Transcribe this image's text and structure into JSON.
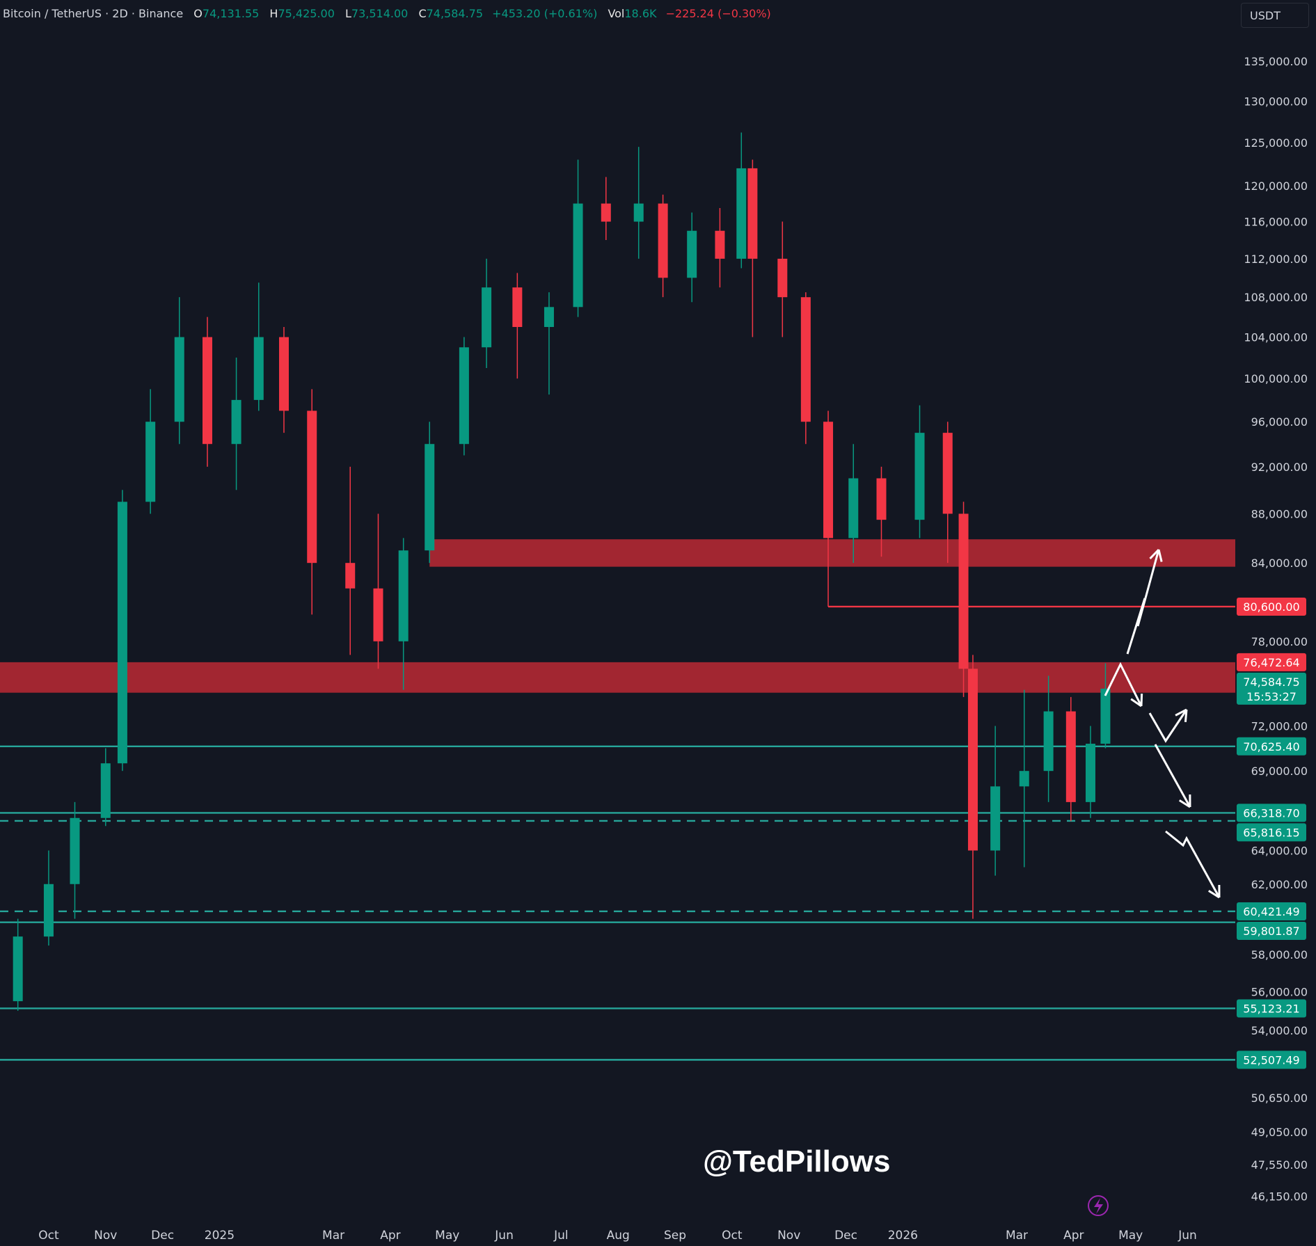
{
  "header": {
    "symbol": "Bitcoin / TetherUS · 2D · Binance",
    "o_label": "O",
    "open": "74,131.55",
    "h_label": "H",
    "high": "75,425.00",
    "l_label": "L",
    "low": "73,514.00",
    "c_label": "C",
    "close": "74,584.75",
    "change": "+453.20 (+0.61%)",
    "vol_label": "Vol",
    "volume": "18.6K",
    "vol_change": "−225.24 (−0.30%)"
  },
  "currency_button": "USDT",
  "watermark": "@TedPillows",
  "countdown": "15:53:27",
  "colors": {
    "bg": "#131722",
    "up": "#089981",
    "down": "#f23645",
    "zone": "#b22833",
    "level": "#26a69a"
  },
  "chart_data": {
    "type": "candlestick",
    "scale": "log",
    "ylim": [
      46150,
      135000
    ],
    "grid": false,
    "x_ticks": [
      "Oct",
      "Nov",
      "Dec",
      "2025",
      "Mar",
      "Apr",
      "May",
      "Jun",
      "Jul",
      "Aug",
      "Sep",
      "Oct",
      "Nov",
      "Dec",
      "2026",
      "Mar",
      "Apr",
      "May",
      "Jun"
    ],
    "y_ticks": [
      "135,000.00",
      "130,000.00",
      "125,000.00",
      "120,000.00",
      "116,000.00",
      "112,000.00",
      "108,000.00",
      "104,000.00",
      "100,000.00",
      "96,000.00",
      "92,000.00",
      "88,000.00",
      "84,000.00",
      "78,000.00",
      "72,000.00",
      "69,000.00",
      "64,000.00",
      "62,000.00",
      "58,000.00",
      "56,000.00",
      "54,000.00",
      "50,650.00",
      "49,050.00",
      "47,550.00",
      "46,150.00"
    ],
    "candles": [
      [
        "2024-09-01",
        52500,
        56000,
        52000,
        55500
      ],
      [
        "2024-09-15",
        55500,
        60000,
        55000,
        59000
      ],
      [
        "2024-10-01",
        59000,
        64000,
        58500,
        62000
      ],
      [
        "2024-10-15",
        62000,
        67000,
        60000,
        66000
      ],
      [
        "2024-11-01",
        66000,
        70500,
        65500,
        69500
      ],
      [
        "2024-11-10",
        69500,
        90000,
        69000,
        89000
      ],
      [
        "2024-11-25",
        89000,
        99000,
        88000,
        96000
      ],
      [
        "2024-12-10",
        96000,
        108000,
        94000,
        104000
      ],
      [
        "2024-12-25",
        104000,
        106000,
        92000,
        94000
      ],
      [
        "2025-01-10",
        94000,
        102000,
        90000,
        98000
      ],
      [
        "2025-01-22",
        98000,
        109500,
        97000,
        104000
      ],
      [
        "2025-02-05",
        104000,
        105000,
        95000,
        97000
      ],
      [
        "2025-02-20",
        97000,
        99000,
        80000,
        84000
      ],
      [
        "2025-03-10",
        84000,
        92000,
        77000,
        82000
      ],
      [
        "2025-03-25",
        82000,
        88000,
        76000,
        78000
      ],
      [
        "2025-04-08",
        78000,
        86000,
        74500,
        85000
      ],
      [
        "2025-04-22",
        85000,
        96000,
        84000,
        94000
      ],
      [
        "2025-05-10",
        94000,
        104000,
        93000,
        103000
      ],
      [
        "2025-05-22",
        103000,
        112000,
        101000,
        109000
      ],
      [
        "2025-06-08",
        109000,
        110500,
        100000,
        105000
      ],
      [
        "2025-06-25",
        105000,
        108500,
        98500,
        107000
      ],
      [
        "2025-07-10",
        107000,
        123000,
        106000,
        118000
      ],
      [
        "2025-07-25",
        118000,
        121000,
        114000,
        116000
      ],
      [
        "2025-08-12",
        116000,
        124500,
        112000,
        118000
      ],
      [
        "2025-08-25",
        118000,
        119000,
        108000,
        110000
      ],
      [
        "2025-09-10",
        110000,
        117000,
        107500,
        115000
      ],
      [
        "2025-09-25",
        115000,
        117500,
        109000,
        112000
      ],
      [
        "2025-10-06",
        112000,
        126200,
        111000,
        122000
      ],
      [
        "2025-10-12",
        122000,
        123000,
        104000,
        112000
      ],
      [
        "2025-10-28",
        112000,
        116000,
        104000,
        108000
      ],
      [
        "2025-11-10",
        108000,
        108500,
        94000,
        96000
      ],
      [
        "2025-11-22",
        96000,
        97000,
        80600,
        86000
      ],
      [
        "2025-12-05",
        86000,
        94000,
        84000,
        91000
      ],
      [
        "2025-12-20",
        91000,
        92000,
        84500,
        87500
      ],
      [
        "2026-01-10",
        87500,
        97500,
        86000,
        95000
      ],
      [
        "2026-01-25",
        95000,
        96000,
        84000,
        88000
      ],
      [
        "2026-02-03",
        88000,
        89000,
        74000,
        76000
      ],
      [
        "2026-02-08",
        76000,
        77000,
        60000,
        64000
      ],
      [
        "2026-02-20",
        64000,
        72000,
        62500,
        68000
      ],
      [
        "2026-03-05",
        68000,
        74500,
        63000,
        69000
      ],
      [
        "2026-03-18",
        69000,
        75500,
        67000,
        73000
      ],
      [
        "2026-03-30",
        73000,
        74000,
        65800,
        67000
      ],
      [
        "2026-04-10",
        67000,
        72000,
        66000,
        70800
      ],
      [
        "2026-04-18",
        70800,
        76400,
        70500,
        74584.75
      ]
    ],
    "levels": [
      {
        "price": 70625.4,
        "label": "70,625.40",
        "style": "solid",
        "color": "#26a69a"
      },
      {
        "price": 66318.7,
        "label": "66,318.70",
        "style": "solid",
        "color": "#26a69a"
      },
      {
        "price": 65816.15,
        "label": "65,816.15",
        "style": "dashed",
        "color": "#26a69a"
      },
      {
        "price": 60421.49,
        "label": "60,421.49",
        "style": "dashed",
        "color": "#26a69a"
      },
      {
        "price": 59801.87,
        "label": "59,801.87",
        "style": "solid",
        "color": "#26a69a"
      },
      {
        "price": 55123.21,
        "label": "55,123.21",
        "style": "solid",
        "color": "#26a69a"
      },
      {
        "price": 52507.49,
        "label": "52,507.49",
        "style": "solid",
        "color": "#26a69a"
      },
      {
        "price": 80600.0,
        "label": "80,600.00",
        "style": "solid",
        "color": "#f23645",
        "from": "2025-11-22"
      }
    ],
    "zones": [
      {
        "from": "2025-04-22",
        "top": 85900,
        "bottom": 83700,
        "color": "#b22833"
      },
      {
        "from": "2024-09-01",
        "top": 76472.64,
        "bottom": 74300,
        "color": "#b22833",
        "label": "76,472.64"
      }
    ],
    "last_price": {
      "price": 74584.75,
      "label": "74,584.75"
    }
  }
}
